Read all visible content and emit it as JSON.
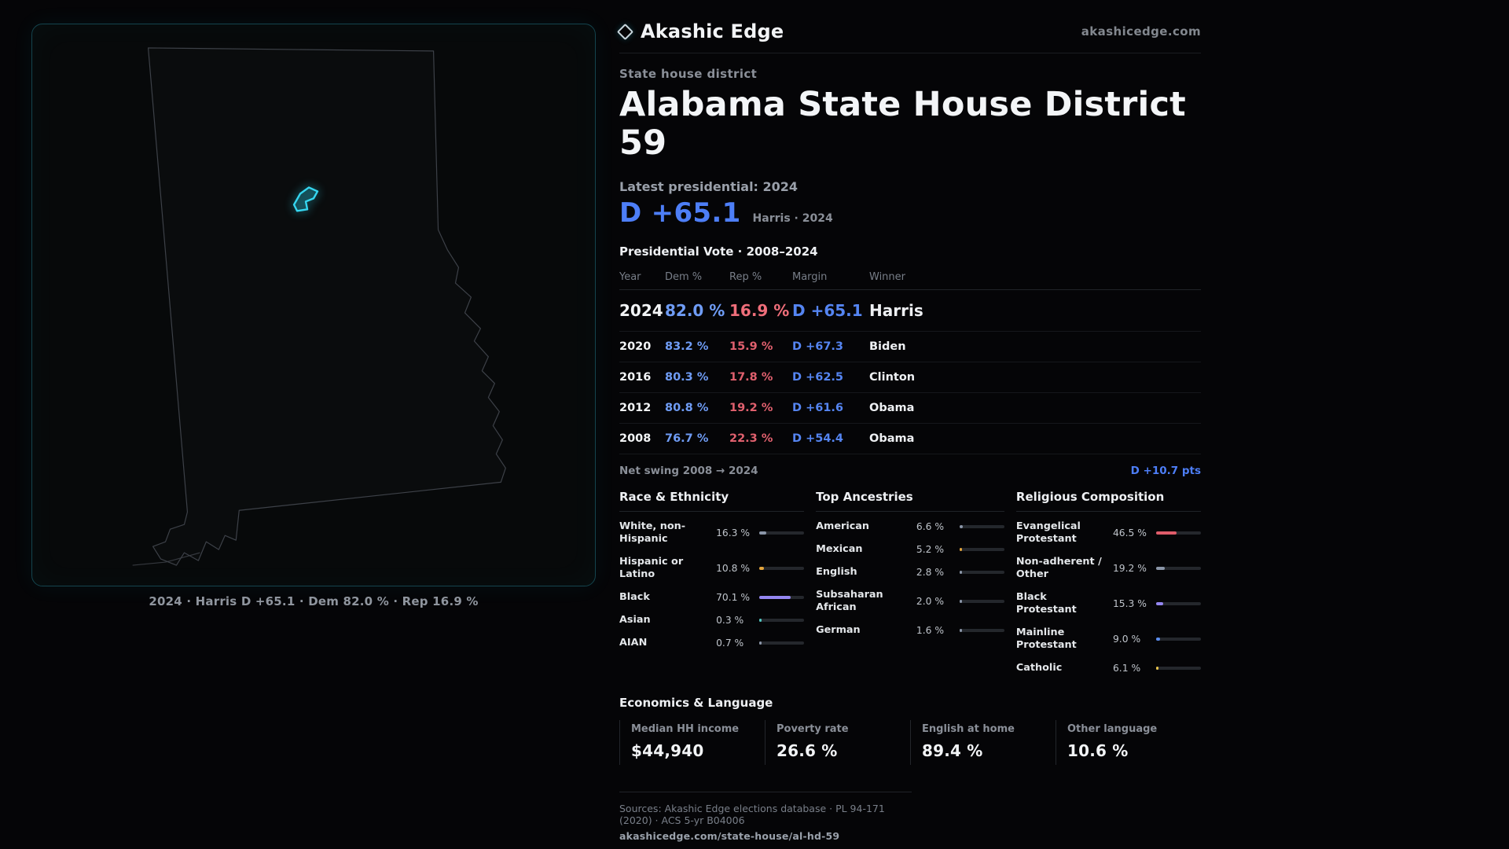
{
  "brand": {
    "name": "Akashic Edge",
    "site": "akashicedge.com"
  },
  "page": {
    "kicker": "State house district",
    "title": "Alabama State House District 59",
    "latest_label": "Latest presidential: 2024",
    "margin_value": "D +65.1",
    "margin_detail": "Harris · 2024"
  },
  "map": {
    "caption": "2024 · Harris D +65.1 · Dem 82.0 % · Rep 16.9 %"
  },
  "vote_table": {
    "title": "Presidential Vote · 2008–2024",
    "headers": {
      "year": "Year",
      "dem": "Dem %",
      "rep": "Rep %",
      "margin": "Margin",
      "winner": "Winner"
    },
    "rows": [
      {
        "year": "2024",
        "dem": "82.0 %",
        "rep": "16.9 %",
        "margin": "D +65.1",
        "winner": "Harris"
      },
      {
        "year": "2020",
        "dem": "83.2 %",
        "rep": "15.9 %",
        "margin": "D +67.3",
        "winner": "Biden"
      },
      {
        "year": "2016",
        "dem": "80.3 %",
        "rep": "17.8 %",
        "margin": "D +62.5",
        "winner": "Clinton"
      },
      {
        "year": "2012",
        "dem": "80.8 %",
        "rep": "19.2 %",
        "margin": "D +61.6",
        "winner": "Obama"
      },
      {
        "year": "2008",
        "dem": "76.7 %",
        "rep": "22.3 %",
        "margin": "D +54.4",
        "winner": "Obama"
      }
    ]
  },
  "net_swing": {
    "label": "Net swing 2008 → 2024",
    "value": "D +10.7 pts"
  },
  "sections": {
    "race": {
      "title": "Race & Ethnicity",
      "rows": [
        {
          "label": "White, non-Hispanic",
          "value": "16.3 %",
          "pct": 16.3,
          "color": "#8b96a8"
        },
        {
          "label": "Hispanic or Latino",
          "value": "10.8 %",
          "pct": 10.8,
          "color": "#e3a43c"
        },
        {
          "label": "Black",
          "value": "70.1 %",
          "pct": 70.1,
          "color": "#9486f0"
        },
        {
          "label": "Asian",
          "value": "0.3 %",
          "pct": 0.3,
          "color": "#53c6c0"
        },
        {
          "label": "AIAN",
          "value": "0.7 %",
          "pct": 0.7,
          "color": "#8b96a8"
        }
      ]
    },
    "ancestry": {
      "title": "Top Ancestries",
      "rows": [
        {
          "label": "American",
          "value": "6.6 %",
          "pct": 6.6,
          "color": "#8b96a8"
        },
        {
          "label": "Mexican",
          "value": "5.2 %",
          "pct": 5.2,
          "color": "#e3a43c"
        },
        {
          "label": "English",
          "value": "2.8 %",
          "pct": 2.8,
          "color": "#8b96a8"
        },
        {
          "label": "Subsaharan African",
          "value": "2.0 %",
          "pct": 2.0,
          "color": "#8b96a8"
        },
        {
          "label": "German",
          "value": "1.6 %",
          "pct": 1.6,
          "color": "#8b96a8"
        }
      ]
    },
    "religion": {
      "title": "Religious Composition",
      "rows": [
        {
          "label": "Evangelical Protestant",
          "value": "46.5 %",
          "pct": 46.5,
          "color": "#e05c6a"
        },
        {
          "label": "Non-adherent / Other",
          "value": "19.2 %",
          "pct": 19.2,
          "color": "#8b96a8"
        },
        {
          "label": "Black Protestant",
          "value": "15.3 %",
          "pct": 15.3,
          "color": "#9486f0"
        },
        {
          "label": "Mainline Protestant",
          "value": "9.0 %",
          "pct": 9.0,
          "color": "#5b8def"
        },
        {
          "label": "Catholic",
          "value": "6.1 %",
          "pct": 6.1,
          "color": "#e8c44d"
        }
      ]
    }
  },
  "economics": {
    "title": "Economics & Language",
    "stats": [
      {
        "label": "Median HH income",
        "value": "$44,940"
      },
      {
        "label": "Poverty rate",
        "value": "26.6 %"
      },
      {
        "label": "English at home",
        "value": "89.4 %"
      },
      {
        "label": "Other language",
        "value": "10.6 %"
      }
    ]
  },
  "footer": {
    "sources": "Sources: Akashic Edge elections database · PL 94-171 (2020) · ACS 5-yr B04006",
    "permalink": "akashicedge.com/state-house/al-hd-59"
  },
  "chart_data": [
    {
      "type": "table",
      "title": "Presidential Vote · 2008–2024",
      "columns": [
        "Year",
        "Dem %",
        "Rep %",
        "Margin",
        "Winner"
      ],
      "rows": [
        [
          2024,
          82.0,
          16.9,
          "D +65.1",
          "Harris"
        ],
        [
          2020,
          83.2,
          15.9,
          "D +67.3",
          "Biden"
        ],
        [
          2016,
          80.3,
          17.8,
          "D +62.5",
          "Clinton"
        ],
        [
          2012,
          80.8,
          19.2,
          "D +61.6",
          "Obama"
        ],
        [
          2008,
          76.7,
          22.3,
          "D +54.4",
          "Obama"
        ]
      ],
      "annotations": [
        "Net swing 2008 → 2024: D +10.7 pts"
      ]
    },
    {
      "type": "bar",
      "title": "Race & Ethnicity",
      "categories": [
        "White, non-Hispanic",
        "Hispanic or Latino",
        "Black",
        "Asian",
        "AIAN"
      ],
      "values": [
        16.3,
        10.8,
        70.1,
        0.3,
        0.7
      ],
      "unit": "%",
      "xlim": [
        0,
        100
      ]
    },
    {
      "type": "bar",
      "title": "Top Ancestries",
      "categories": [
        "American",
        "Mexican",
        "English",
        "Subsaharan African",
        "German"
      ],
      "values": [
        6.6,
        5.2,
        2.8,
        2.0,
        1.6
      ],
      "unit": "%",
      "xlim": [
        0,
        100
      ]
    },
    {
      "type": "bar",
      "title": "Religious Composition",
      "categories": [
        "Evangelical Protestant",
        "Non-adherent / Other",
        "Black Protestant",
        "Mainline Protestant",
        "Catholic"
      ],
      "values": [
        46.5,
        19.2,
        15.3,
        9.0,
        6.1
      ],
      "unit": "%",
      "xlim": [
        0,
        100
      ]
    },
    {
      "type": "table",
      "title": "Economics & Language",
      "columns": [
        "Median HH income",
        "Poverty rate",
        "English at home",
        "Other language"
      ],
      "rows": [
        [
          "$44,940",
          "26.6 %",
          "89.4 %",
          "10.6 %"
        ]
      ]
    }
  ]
}
